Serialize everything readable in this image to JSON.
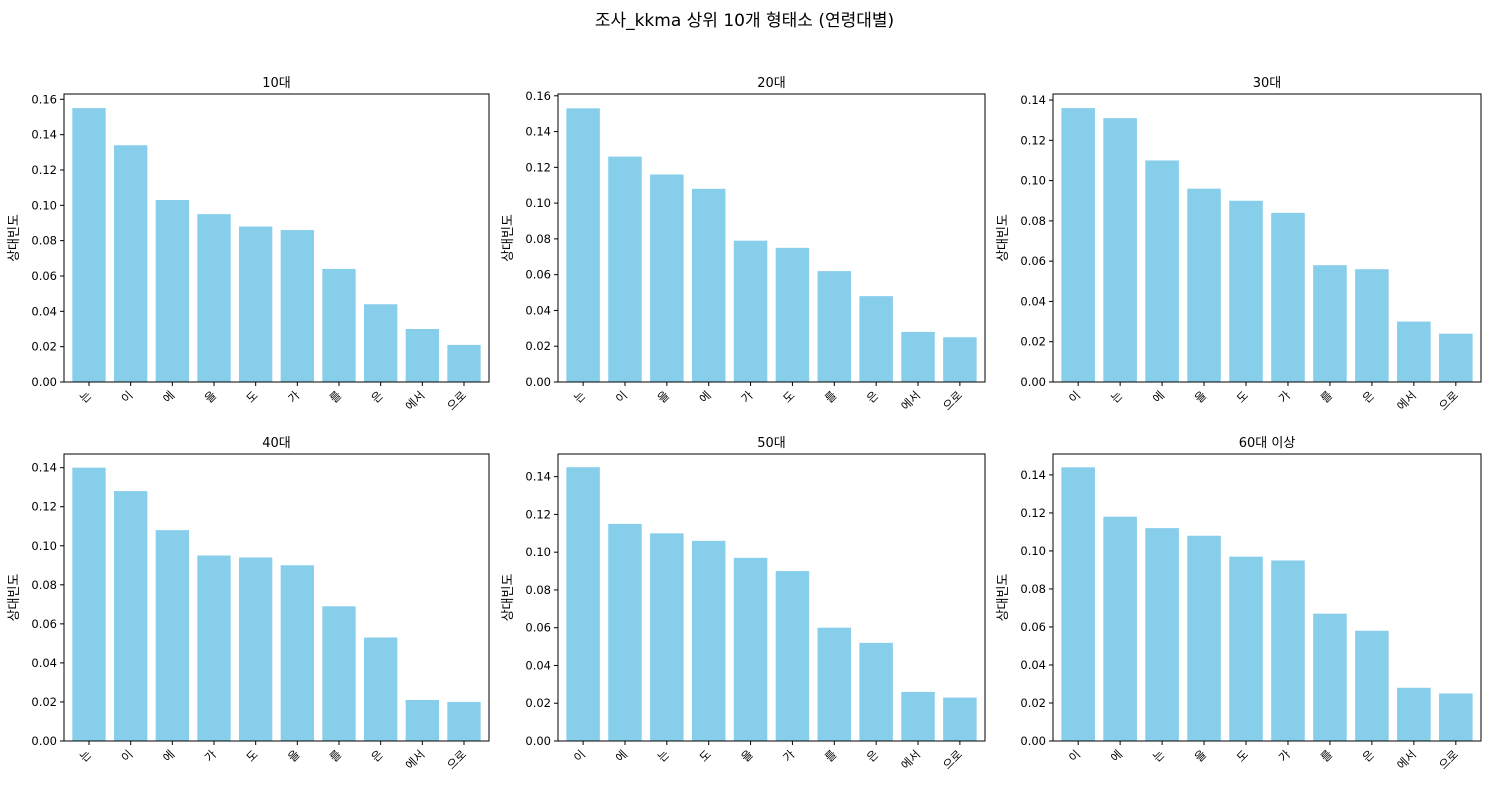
{
  "suptitle": "조사_kkma 상위 10개 형태소 (연령대별)",
  "colors": {
    "bar": "#87CEEB",
    "axis": "#000000"
  },
  "chart_data": [
    {
      "type": "bar",
      "title": "10대",
      "ylabel": "상대빈도",
      "categories": [
        "는",
        "이",
        "에",
        "을",
        "도",
        "가",
        "를",
        "은",
        "에서",
        "으로"
      ],
      "values": [
        0.155,
        0.134,
        0.103,
        0.095,
        0.088,
        0.086,
        0.064,
        0.044,
        0.03,
        0.021
      ],
      "ylim": [
        0,
        0.163
      ],
      "yticks": [
        0.0,
        0.02,
        0.04,
        0.06,
        0.08,
        0.1,
        0.12,
        0.14,
        0.16
      ],
      "ytick_labels": [
        "0.00",
        "0.02",
        "0.04",
        "0.06",
        "0.08",
        "0.10",
        "0.12",
        "0.14",
        "0.16"
      ]
    },
    {
      "type": "bar",
      "title": "20대",
      "ylabel": "상대빈도",
      "categories": [
        "는",
        "이",
        "을",
        "에",
        "가",
        "도",
        "를",
        "은",
        "에서",
        "으로"
      ],
      "values": [
        0.153,
        0.126,
        0.116,
        0.108,
        0.079,
        0.075,
        0.062,
        0.048,
        0.028,
        0.025
      ],
      "ylim": [
        0,
        0.161
      ],
      "yticks": [
        0.0,
        0.02,
        0.04,
        0.06,
        0.08,
        0.1,
        0.12,
        0.14,
        0.16
      ],
      "ytick_labels": [
        "0.00",
        "0.02",
        "0.04",
        "0.06",
        "0.08",
        "0.10",
        "0.12",
        "0.14",
        "0.16"
      ]
    },
    {
      "type": "bar",
      "title": "30대",
      "ylabel": "상대빈도",
      "categories": [
        "이",
        "는",
        "에",
        "을",
        "도",
        "가",
        "를",
        "은",
        "에서",
        "으로"
      ],
      "values": [
        0.136,
        0.131,
        0.11,
        0.096,
        0.09,
        0.084,
        0.058,
        0.056,
        0.03,
        0.024
      ],
      "ylim": [
        0,
        0.143
      ],
      "yticks": [
        0.0,
        0.02,
        0.04,
        0.06,
        0.08,
        0.1,
        0.12,
        0.14
      ],
      "ytick_labels": [
        "0.00",
        "0.02",
        "0.04",
        "0.06",
        "0.08",
        "0.10",
        "0.12",
        "0.14"
      ]
    },
    {
      "type": "bar",
      "title": "40대",
      "ylabel": "상대빈도",
      "categories": [
        "는",
        "이",
        "에",
        "가",
        "도",
        "을",
        "를",
        "은",
        "에서",
        "으로"
      ],
      "values": [
        0.14,
        0.128,
        0.108,
        0.095,
        0.094,
        0.09,
        0.069,
        0.053,
        0.021,
        0.02
      ],
      "ylim": [
        0,
        0.147
      ],
      "yticks": [
        0.0,
        0.02,
        0.04,
        0.06,
        0.08,
        0.1,
        0.12,
        0.14
      ],
      "ytick_labels": [
        "0.00",
        "0.02",
        "0.04",
        "0.06",
        "0.08",
        "0.10",
        "0.12",
        "0.14"
      ]
    },
    {
      "type": "bar",
      "title": "50대",
      "ylabel": "상대빈도",
      "categories": [
        "이",
        "에",
        "는",
        "도",
        "을",
        "가",
        "를",
        "은",
        "에서",
        "으로"
      ],
      "values": [
        0.145,
        0.115,
        0.11,
        0.106,
        0.097,
        0.09,
        0.06,
        0.052,
        0.026,
        0.023
      ],
      "ylim": [
        0,
        0.152
      ],
      "yticks": [
        0.0,
        0.02,
        0.04,
        0.06,
        0.08,
        0.1,
        0.12,
        0.14
      ],
      "ytick_labels": [
        "0.00",
        "0.02",
        "0.04",
        "0.06",
        "0.08",
        "0.10",
        "0.12",
        "0.14"
      ]
    },
    {
      "type": "bar",
      "title": "60대 이상",
      "ylabel": "상대빈도",
      "categories": [
        "이",
        "에",
        "는",
        "을",
        "도",
        "가",
        "를",
        "은",
        "에서",
        "으로"
      ],
      "values": [
        0.144,
        0.118,
        0.112,
        0.108,
        0.097,
        0.095,
        0.067,
        0.058,
        0.028,
        0.025
      ],
      "ylim": [
        0,
        0.151
      ],
      "yticks": [
        0.0,
        0.02,
        0.04,
        0.06,
        0.08,
        0.1,
        0.12,
        0.14
      ],
      "ytick_labels": [
        "0.00",
        "0.02",
        "0.04",
        "0.06",
        "0.08",
        "0.10",
        "0.12",
        "0.14"
      ]
    }
  ]
}
